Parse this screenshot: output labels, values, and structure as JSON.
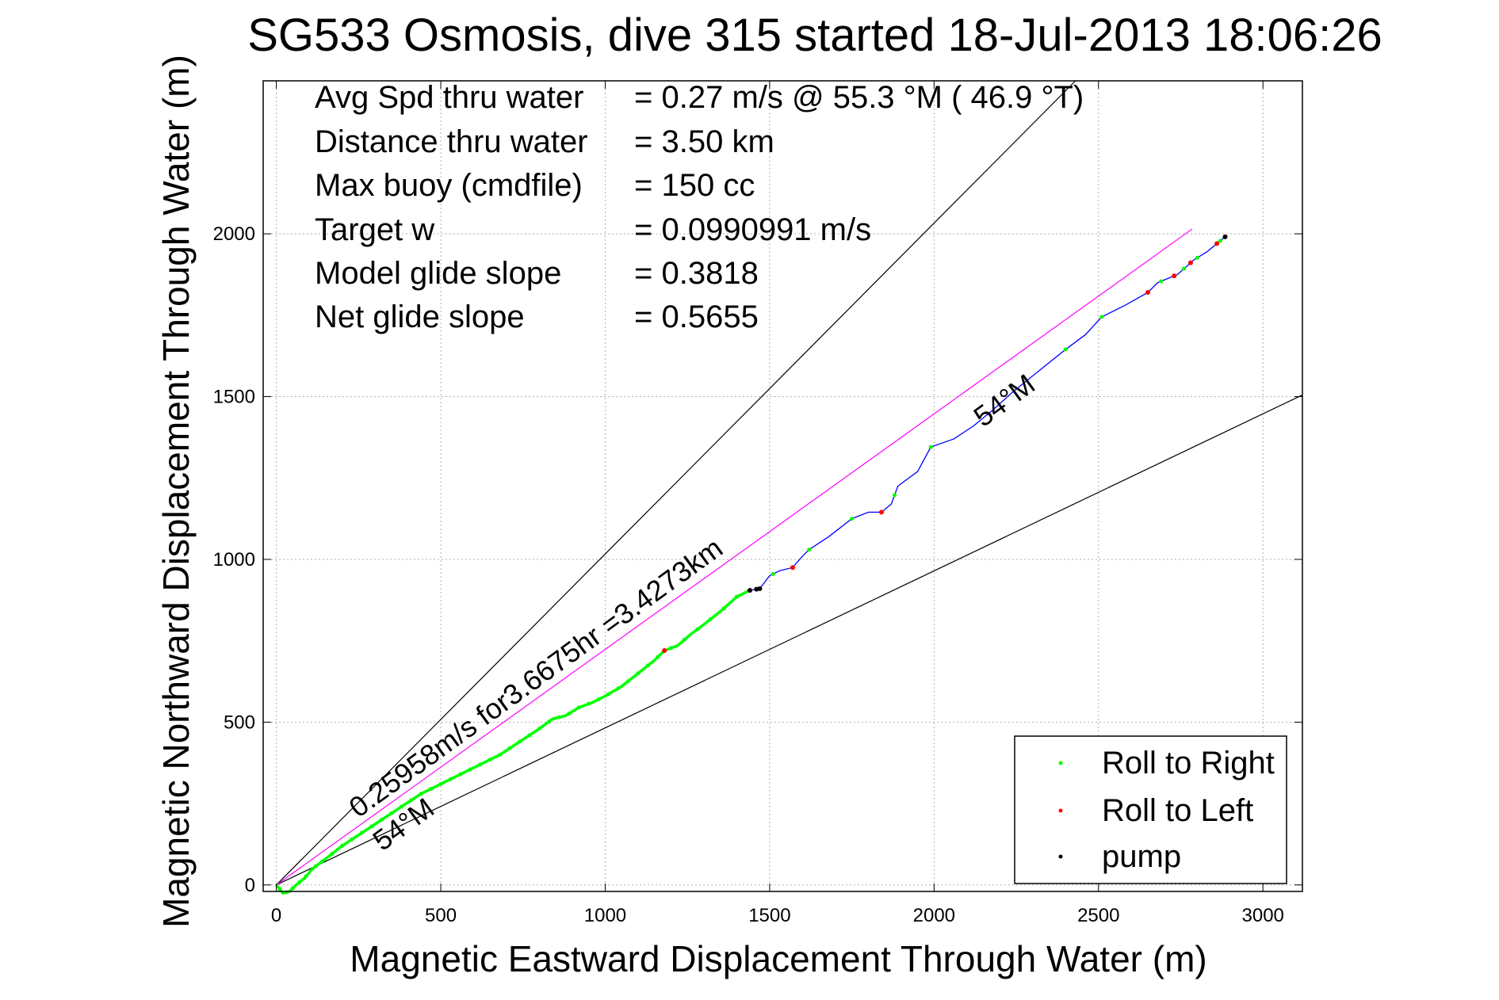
{
  "chart_data": {
    "type": "line",
    "title": "SG533 Osmosis, dive 315 started 18-Jul-2013 18:06:26",
    "xlabel": "Magnetic Eastward Displacement Through Water (m)",
    "ylabel": "Magnetic Northward Displacement Through Water (m)",
    "xlim": [
      -40,
      3120
    ],
    "ylim": [
      -20,
      2470
    ],
    "xticks": [
      0,
      500,
      1000,
      1500,
      2000,
      2500,
      3000
    ],
    "yticks": [
      0,
      500,
      1000,
      1500,
      2000
    ],
    "grid": true,
    "info_lines": [
      {
        "label": "Avg Spd thru water",
        "value": "=  0.27 m/s @  55.3 °M ( 46.9 °T)"
      },
      {
        "label": "Distance thru water",
        "value": "=  3.50 km"
      },
      {
        "label": "Max buoy (cmdfile)",
        "value": "= 150 cc"
      },
      {
        "label": "Target w",
        "value": "= 0.0990991 m/s"
      },
      {
        "label": "Model glide slope",
        "value": "= 0.3818"
      },
      {
        "label": "Net glide slope",
        "value": "= 0.5655"
      }
    ],
    "annotations": {
      "track_label": "0.25958m/s for3.6675hr =3.4273km",
      "heading_label_upper": "54°M",
      "heading_label_lower": "54°M"
    },
    "reference_lines": [
      {
        "name": "upper-bound",
        "color": "#000000",
        "x": [
          0,
          2430
        ],
        "y": [
          0,
          2470
        ]
      },
      {
        "name": "lower-bound",
        "color": "#000000",
        "x": [
          0,
          3120
        ],
        "y": [
          0,
          1505
        ]
      },
      {
        "name": "net-track",
        "color": "#ff00ff",
        "x": [
          0,
          2785
        ],
        "y": [
          0,
          2015
        ]
      }
    ],
    "series": [
      {
        "name": "track",
        "color": "#0000ff",
        "x": [
          0,
          20,
          40,
          60,
          85,
          110,
          150,
          200,
          260,
          320,
          380,
          440,
          500,
          560,
          620,
          680,
          740,
          800,
          840,
          880,
          920,
          960,
          1000,
          1050,
          1100,
          1150,
          1180,
          1220,
          1260,
          1300,
          1350,
          1400,
          1440,
          1470,
          1500,
          1530,
          1570,
          1600,
          1620,
          1680,
          1750,
          1800,
          1840,
          1870,
          1890,
          1950,
          1990,
          2060,
          2120,
          2180,
          2240,
          2320,
          2400,
          2460,
          2510,
          2580,
          2650,
          2680,
          2740,
          2790,
          2830,
          2860,
          2890
        ],
        "y": [
          0,
          -25,
          -20,
          0,
          20,
          50,
          80,
          120,
          160,
          200,
          240,
          280,
          310,
          340,
          370,
          400,
          440,
          480,
          510,
          520,
          545,
          560,
          580,
          610,
          650,
          690,
          720,
          735,
          770,
          800,
          840,
          885,
          905,
          910,
          950,
          965,
          975,
          1010,
          1030,
          1070,
          1125,
          1145,
          1145,
          1170,
          1225,
          1270,
          1345,
          1370,
          1410,
          1460,
          1515,
          1580,
          1645,
          1690,
          1745,
          1780,
          1820,
          1850,
          1875,
          1920,
          1945,
          1970,
          1995
        ]
      }
    ],
    "legend": {
      "position": "bottom-right",
      "entries": [
        {
          "label": "Roll to Right",
          "color": "#00ff00"
        },
        {
          "label": "Roll to Left",
          "color": "#ff0000"
        },
        {
          "label": "pump",
          "color": "#000000"
        }
      ]
    },
    "marker_colors": {
      "roll_right": "#00ff00",
      "roll_left": "#ff0000",
      "pump": "#000000"
    },
    "roll_right_x": [
      10,
      30,
      50,
      70,
      90,
      120,
      140,
      170,
      200,
      230,
      260,
      290,
      320,
      350,
      380,
      410,
      440,
      470,
      500,
      530,
      560,
      590,
      620,
      650,
      680,
      710,
      740,
      770,
      800,
      830,
      860,
      890,
      920,
      950,
      980,
      1010,
      1040,
      1070,
      1100,
      1130,
      1160,
      1200,
      1240,
      1280,
      1320,
      1360,
      1400,
      1510,
      1620,
      1750,
      1880,
      1990,
      2400,
      2510,
      2690,
      2760,
      2800,
      2870
    ],
    "roll_left_x": [
      1180,
      1570,
      1840,
      2650,
      2730,
      2780,
      2860
    ],
    "pump_x": [
      1440,
      1460,
      1470,
      2885
    ]
  }
}
